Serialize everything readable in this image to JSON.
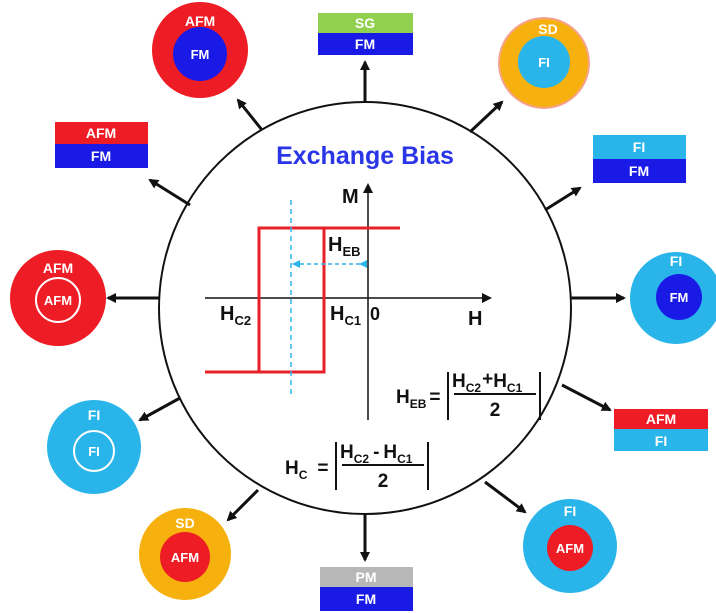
{
  "colors": {
    "afm": "#ee1c25",
    "fm": "#1a1ae6",
    "fi": "#29b5ea",
    "sd": "#f7b10f",
    "sg": "#92d050",
    "pm": "#b7b7b7",
    "loop": "#e8202a",
    "axis": "#111111",
    "title": "#2a35e8"
  },
  "title": "Exchange Bias",
  "axes": {
    "m": "M",
    "h": "H",
    "zero": "0"
  },
  "loop_labels": {
    "hc1_main": "H",
    "hc1_sub": "C1",
    "hc2_main": "H",
    "hc2_sub": "C2",
    "heb_main": "H",
    "heb_sub": "EB"
  },
  "formula_heb": {
    "lhs_main": "H",
    "lhs_sub": "EB",
    "eq": "=",
    "t1_main": "H",
    "t1_sub": "C2",
    "op": "+",
    "t2_main": "H",
    "t2_sub": "C1",
    "den": "2"
  },
  "formula_hc": {
    "lhs_main": "H",
    "lhs_sub": "C",
    "eq": "=",
    "t1_main": "H",
    "t1_sub": "C2",
    "op": "-",
    "t2_main": "H",
    "t2_sub": "C1",
    "den": "2"
  },
  "systems": {
    "top_left_core_shell": {
      "outer": "AFM",
      "inner": "FM"
    },
    "top_bilayer": {
      "top": "SG",
      "bottom": "FM"
    },
    "top_right_core_shell": {
      "outer": "SD",
      "inner": "FI"
    },
    "upper_left_bilayer": {
      "top": "AFM",
      "bottom": "FM"
    },
    "upper_right_bilayer": {
      "top": "FI",
      "bottom": "FM"
    },
    "left_core_shell": {
      "outer": "AFM",
      "inner": "AFM"
    },
    "right_core_shell": {
      "outer": "FI",
      "inner": "FM"
    },
    "lower_left_core_shell": {
      "outer": "FI",
      "inner": "FI"
    },
    "lower_right_bilayer": {
      "top": "AFM",
      "bottom": "FI"
    },
    "bottom_left_core_shell": {
      "outer": "SD",
      "inner": "AFM"
    },
    "bottom_bilayer": {
      "top": "PM",
      "bottom": "FM"
    },
    "bottom_right_core_shell": {
      "outer": "FI",
      "inner": "AFM"
    }
  }
}
